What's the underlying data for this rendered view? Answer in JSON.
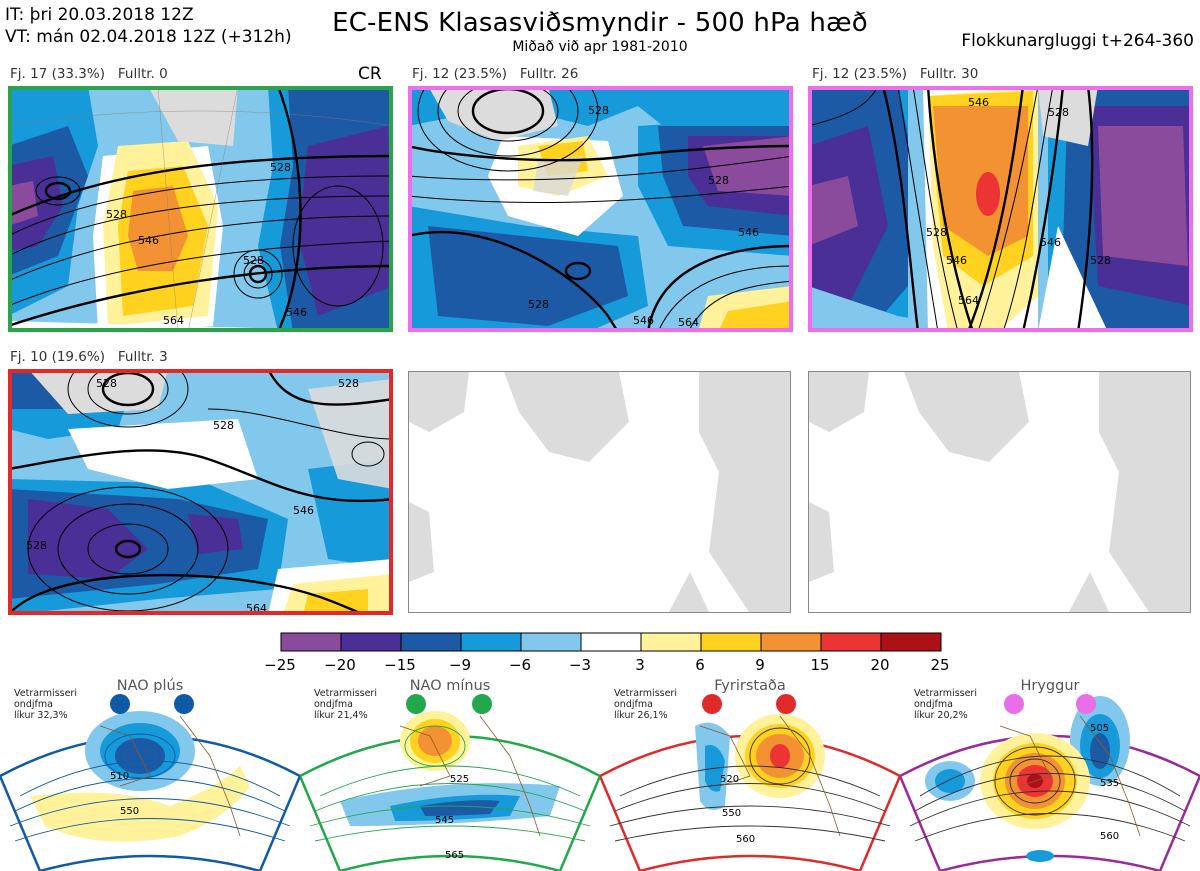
{
  "header": {
    "it_line": "IT: þri 20.03.2018 12Z",
    "vt_line": "VT: mán 02.04.2018 12Z  (+312h)",
    "title": "EC-ENS Klasasviðsmyndir - 500 hPa hæð",
    "subtitle": "Miðað við apr 1981-2010",
    "window": "Flokkunargluggi t+264-360"
  },
  "panels": [
    {
      "label": "Fj. 17 (33.3%)   Fulltr. 0",
      "regime_tag": "CR",
      "border_color": "#2ba34a",
      "contour_labels": [
        "528",
        "528",
        "546",
        "528",
        "564",
        "546"
      ]
    },
    {
      "label": "Fj. 12 (23.5%)   Fulltr. 26",
      "border_color": "#ee6eee",
      "contour_labels": [
        "528",
        "528",
        "546",
        "528",
        "546",
        "564"
      ]
    },
    {
      "label": "Fj. 12 (23.5%)   Fulltr. 30",
      "border_color": "#ee6eee",
      "contour_labels": [
        "546",
        "528",
        "546",
        "528",
        "546",
        "564",
        "528"
      ]
    },
    {
      "label": "Fj. 10 (19.6%)   Fulltr. 3",
      "border_color": "#e02a2a",
      "contour_labels": [
        "528",
        "528",
        "528",
        "546",
        "528",
        "564"
      ]
    }
  ],
  "colorbar": {
    "ticks": [
      "−25",
      "−20",
      "−15",
      "−9",
      "−6",
      "−3",
      "3",
      "6",
      "9",
      "15",
      "20",
      "25"
    ],
    "colors": [
      "#8a4b9c",
      "#4a2f96",
      "#1d5aa6",
      "#169ad9",
      "#82c8ec",
      "#ffffff",
      "#fff29a",
      "#ffd21f",
      "#f39232",
      "#ec3434",
      "#ab1117"
    ]
  },
  "regimes": [
    {
      "name": "NAO plús",
      "note_line1": "Vetrarmisseri",
      "note_line2": "ondjfma",
      "note_line3": "líkur 32,3%",
      "color": "#0f5aa5",
      "contour_labels": [
        "510",
        "550"
      ]
    },
    {
      "name": "NAO mínus",
      "note_line1": "Vetrarmisseri",
      "note_line2": "ondjfma",
      "note_line3": "líkur 21,4%",
      "color": "#22a84a",
      "contour_labels": [
        "525",
        "545",
        "565"
      ]
    },
    {
      "name": "Fyrirstaða",
      "note_line1": "Vetrarmisseri",
      "note_line2": "ondjfma",
      "note_line3": "líkur 26,1%",
      "color": "#e02a2a",
      "contour_labels": [
        "520",
        "550",
        "560"
      ]
    },
    {
      "name": "Hryggur",
      "note_line1": "Vetrarmisseri",
      "note_line2": "ondjfma",
      "note_line3": "líkur 20,2%",
      "color": "#9a2a9a",
      "dot_color": "#ea6ee6",
      "contour_labels": [
        "505",
        "535",
        "560"
      ]
    }
  ]
}
